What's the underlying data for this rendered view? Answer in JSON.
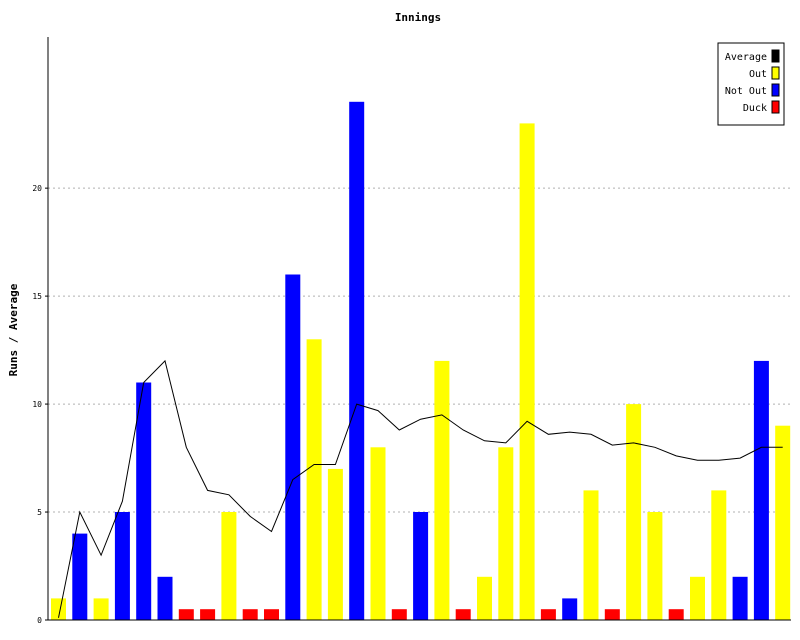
{
  "chart_data": {
    "type": "bar",
    "title": "Innings",
    "xlabel": "",
    "ylabel": "Runs / Average",
    "ylim": [
      0,
      27
    ],
    "yticks": [
      0,
      5,
      10,
      15,
      20
    ],
    "grid": true,
    "legend_position": "top-right",
    "legend": [
      {
        "label": "Average",
        "color": "#000000"
      },
      {
        "label": "Out",
        "color": "#ffff00"
      },
      {
        "label": "Not Out",
        "color": "#0000ff"
      },
      {
        "label": "Duck",
        "color": "#ff0000"
      }
    ],
    "innings": [
      {
        "runs": 1,
        "status": "Out"
      },
      {
        "runs": 4,
        "status": "Not Out"
      },
      {
        "runs": 1,
        "status": "Out"
      },
      {
        "runs": 5,
        "status": "Not Out"
      },
      {
        "runs": 11,
        "status": "Not Out"
      },
      {
        "runs": 2,
        "status": "Not Out"
      },
      {
        "runs": 0,
        "status": "Duck"
      },
      {
        "runs": 0,
        "status": "Duck"
      },
      {
        "runs": 5,
        "status": "Out"
      },
      {
        "runs": 0,
        "status": "Duck"
      },
      {
        "runs": 0,
        "status": "Duck"
      },
      {
        "runs": 16,
        "status": "Not Out"
      },
      {
        "runs": 13,
        "status": "Out"
      },
      {
        "runs": 7,
        "status": "Out"
      },
      {
        "runs": 24,
        "status": "Not Out"
      },
      {
        "runs": 8,
        "status": "Out"
      },
      {
        "runs": 0,
        "status": "Duck"
      },
      {
        "runs": 5,
        "status": "Not Out"
      },
      {
        "runs": 12,
        "status": "Out"
      },
      {
        "runs": 0,
        "status": "Duck"
      },
      {
        "runs": 2,
        "status": "Out"
      },
      {
        "runs": 8,
        "status": "Out"
      },
      {
        "runs": 23,
        "status": "Out"
      },
      {
        "runs": 0,
        "status": "Duck"
      },
      {
        "runs": 1,
        "status": "Not Out"
      },
      {
        "runs": 6,
        "status": "Out"
      },
      {
        "runs": 0,
        "status": "Duck"
      },
      {
        "runs": 10,
        "status": "Out"
      },
      {
        "runs": 5,
        "status": "Out"
      },
      {
        "runs": 0,
        "status": "Duck"
      },
      {
        "runs": 2,
        "status": "Out"
      },
      {
        "runs": 6,
        "status": "Out"
      },
      {
        "runs": 2,
        "status": "Not Out"
      },
      {
        "runs": 12,
        "status": "Not Out"
      },
      {
        "runs": 9,
        "status": "Out"
      }
    ],
    "average": [
      0.1,
      5,
      3,
      5.5,
      11,
      12,
      8,
      6,
      5.8,
      4.8,
      4.1,
      6.5,
      7.2,
      7.2,
      10,
      9.7,
      8.8,
      9.3,
      9.5,
      8.8,
      8.3,
      8.2,
      9.2,
      8.6,
      8.7,
      8.6,
      8.1,
      8.2,
      8.0,
      7.6,
      7.4,
      7.4,
      7.5,
      8.0,
      8.0
    ]
  }
}
